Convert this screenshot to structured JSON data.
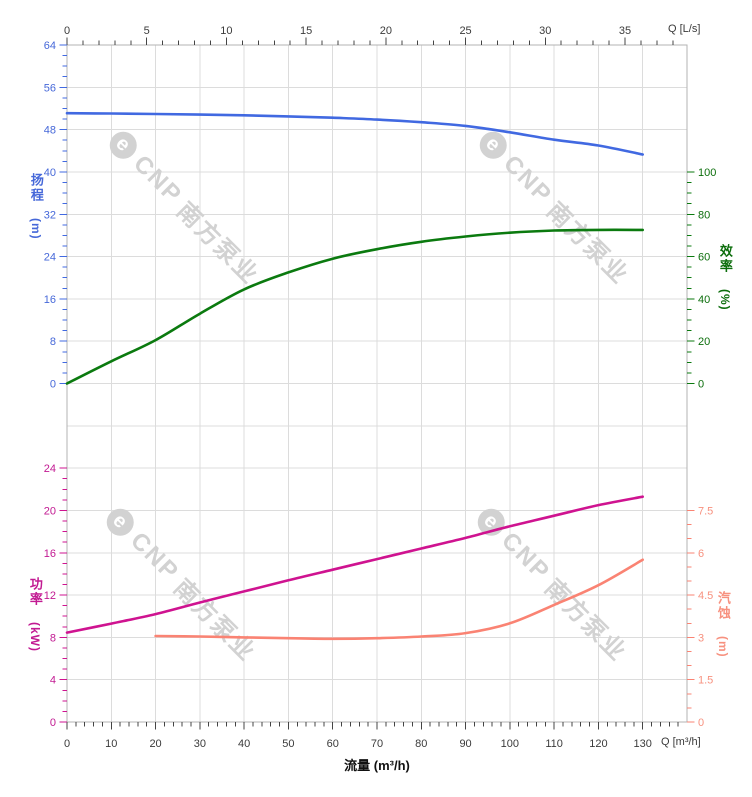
{
  "watermarks": {
    "logo_letter": "e",
    "brand": "CNP",
    "company": "南方泵业"
  },
  "labels": {
    "top_unit": "Q [L/s]",
    "bottom_unit": "Q [m³/h]",
    "flow_axis_title": "流量 (m³/h)",
    "head_title": "扬程",
    "head_unit": "(m)",
    "eff_title": "效率",
    "eff_unit": "(%)",
    "power_title": "功率",
    "power_unit": "(kW)",
    "npsh_title": "汽蚀",
    "npsh_unit": "(m)"
  },
  "colors": {
    "grid": "#dcdcdc",
    "frame": "#b3b3b3",
    "x_tick": "#444444",
    "x_tick_label": "#3b3b3b",
    "head": "#4169e1",
    "head_label": "#4668d9",
    "efficiency": "#0b7a0f",
    "efficiency_label": "#0c6e0c",
    "power": "#cf1390",
    "power_label": "#c21a92",
    "npsh": "#fa8373",
    "npsh_label": "#f7917f",
    "watermark": "#d2d2d2"
  },
  "chart_data": [
    {
      "type": "line",
      "panel": "top",
      "x_axis": {
        "unit": "Q [L/s]",
        "position": "top",
        "range": [
          0,
          38.89
        ],
        "major_ticks": [
          0,
          5,
          10,
          15,
          20,
          25,
          30,
          35
        ],
        "minor_step": 1,
        "grid": true
      },
      "y_axis_left": {
        "label": "扬程",
        "unit": "m",
        "range": [
          0,
          64
        ],
        "major_ticks": [
          0,
          8,
          16,
          24,
          32,
          40,
          48,
          56,
          64
        ],
        "minor_step": 2
      },
      "y_axis_right": {
        "label": "效率",
        "unit": "%",
        "range": [
          0,
          100
        ],
        "major_ticks": [
          0,
          20,
          40,
          60,
          80,
          100
        ],
        "minor_step": 5
      },
      "series": [
        {
          "name": "扬程 (head)",
          "axis": "left",
          "x_m3h": [
            0,
            10,
            20,
            30,
            40,
            50,
            60,
            70,
            80,
            90,
            100,
            110,
            120,
            130
          ],
          "values": [
            51.1,
            51.05,
            50.95,
            50.85,
            50.7,
            50.5,
            50.25,
            49.9,
            49.4,
            48.7,
            47.5,
            46.1,
            45.0,
            43.3
          ]
        },
        {
          "name": "效率 (efficiency)",
          "axis": "right",
          "x_m3h": [
            0,
            10,
            20,
            30,
            40,
            50,
            60,
            70,
            80,
            90,
            100,
            110,
            120,
            130
          ],
          "values": [
            0,
            10.5,
            20.5,
            33,
            44.5,
            52.5,
            59,
            63.5,
            67,
            69.5,
            71.3,
            72.3,
            72.6,
            72.6
          ]
        }
      ]
    },
    {
      "type": "line",
      "panel": "bottom",
      "x_axis": {
        "unit": "Q [m³/h]",
        "label": "流量 (m³/h)",
        "position": "bottom",
        "range": [
          0,
          140
        ],
        "major_ticks": [
          0,
          10,
          20,
          30,
          40,
          50,
          60,
          70,
          80,
          90,
          100,
          110,
          120,
          130
        ],
        "minor_step": 2,
        "grid": true
      },
      "y_axis_left": {
        "label": "功率",
        "unit": "kW",
        "range": [
          0,
          24
        ],
        "major_ticks": [
          0,
          4,
          8,
          12,
          16,
          20,
          24
        ],
        "minor_step": 1
      },
      "y_axis_right": {
        "label": "汽蚀",
        "unit": "m",
        "range": [
          0,
          7.5
        ],
        "major_ticks": [
          0,
          1.5,
          3,
          4.5,
          6,
          7.5
        ],
        "minor_step": 0.5
      },
      "series": [
        {
          "name": "功率 (power)",
          "axis": "left",
          "x_m3h": [
            0,
            10,
            20,
            30,
            40,
            50,
            60,
            70,
            80,
            90,
            100,
            110,
            120,
            130
          ],
          "values": [
            8.45,
            9.3,
            10.2,
            11.3,
            12.35,
            13.4,
            14.4,
            15.4,
            16.4,
            17.4,
            18.5,
            19.5,
            20.5,
            21.3
          ]
        },
        {
          "name": "汽蚀 (npsh)",
          "axis": "right",
          "x_m3h": [
            20,
            30,
            40,
            50,
            60,
            70,
            80,
            90,
            100,
            110,
            120,
            130
          ],
          "values": [
            3.05,
            3.03,
            3.0,
            2.97,
            2.95,
            2.97,
            3.03,
            3.15,
            3.5,
            4.15,
            4.85,
            5.75
          ]
        }
      ]
    }
  ]
}
